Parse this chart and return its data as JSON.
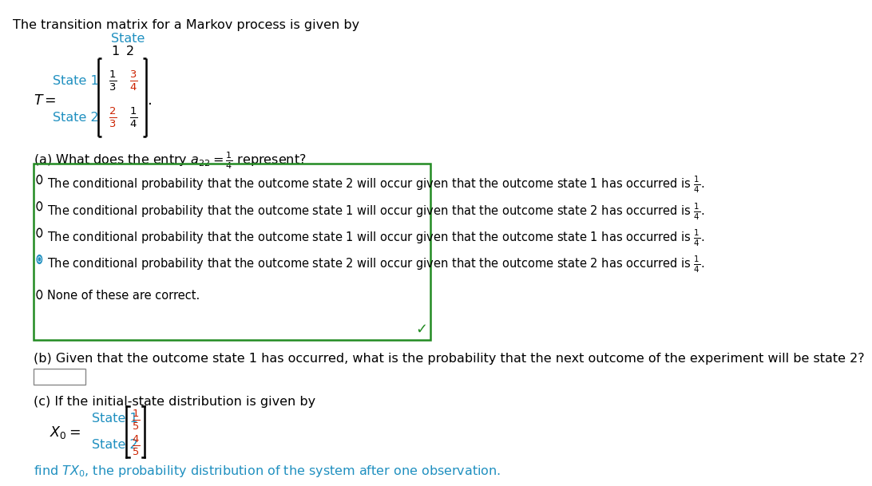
{
  "bg_color": "#ffffff",
  "text_color": "#000000",
  "cyan_color": "#2090c0",
  "red_color": "#cc2200",
  "green_color": "#228B22",
  "box_border_color": "#228B22",
  "title_text": "The transition matrix for a Markov process is given by",
  "state_label": "State",
  "state1_label": "State 1",
  "state2_label": "State 2",
  "col1_label": "1",
  "col2_label": "2",
  "options": [
    "The conditional probability that the outcome state 2 will occur given that the outcome state 1 has occurred is $\\frac{1}{4}$.",
    "The conditional probability that the outcome state 1 will occur given that the outcome state 2 has occurred is $\\frac{1}{4}$.",
    "The conditional probability that the outcome state 1 will occur given that the outcome state 1 has occurred is $\\frac{1}{4}$.",
    "The conditional probability that the outcome state 2 will occur given that the outcome state 2 has occurred is $\\frac{1}{4}$.",
    "None of these are correct."
  ],
  "selected_option": 3,
  "part_b_text": "(b) Given that the outcome state 1 has occurred, what is the probability that the next outcome of the experiment will be state 2?",
  "part_c_text": "(c) If the initial-state distribution is given by",
  "part_c_find": "find $TX_0$, the probability distribution of the system after one observation."
}
